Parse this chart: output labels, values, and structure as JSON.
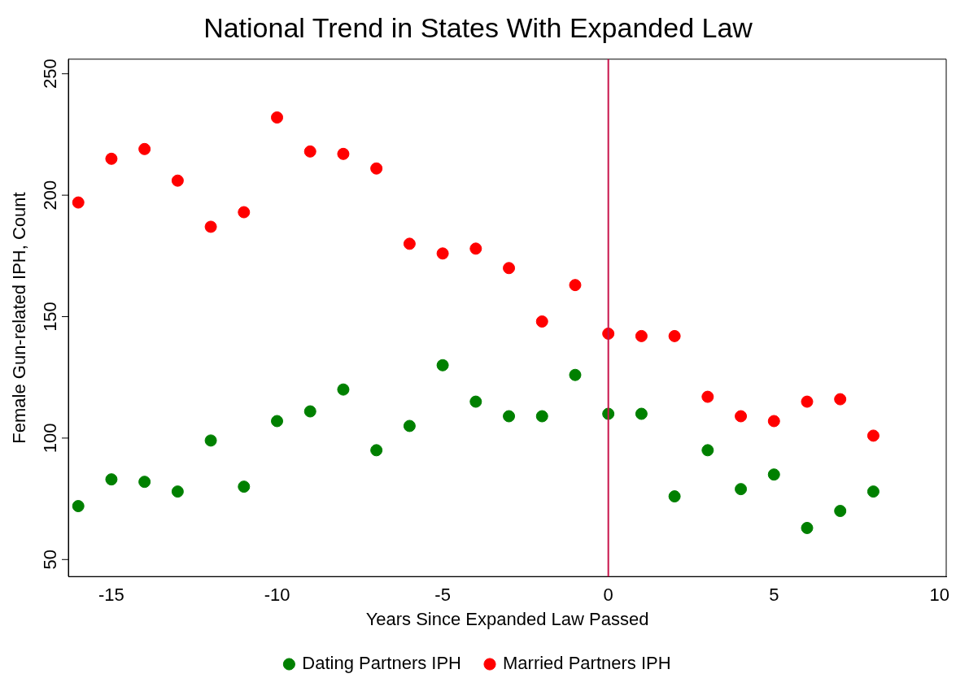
{
  "chart_data": {
    "type": "scatter",
    "title": "National Trend in States With Expanded Law",
    "xlabel": "Years Since Expanded Law Passed",
    "ylabel": "Female Gun-related IPH, Count",
    "x": [
      -16,
      -15,
      -14,
      -13,
      -12,
      -11,
      -10,
      -9,
      -8,
      -7,
      -6,
      -5,
      -4,
      -3,
      -2,
      -1,
      0,
      1,
      2,
      3,
      4,
      5,
      6,
      7,
      8
    ],
    "series": [
      {
        "name": "Dating Partners IPH",
        "color": "#008000",
        "values": [
          72,
          83,
          82,
          78,
          99,
          80,
          107,
          111,
          120,
          95,
          105,
          130,
          115,
          109,
          109,
          126,
          110,
          110,
          76,
          95,
          79,
          85,
          63,
          70,
          78
        ]
      },
      {
        "name": "Married Partners IPH",
        "color": "#ff0000",
        "values": [
          197,
          215,
          219,
          206,
          187,
          193,
          232,
          218,
          217,
          211,
          180,
          176,
          178,
          170,
          148,
          163,
          143,
          142,
          142,
          117,
          109,
          107,
          115,
          116,
          101
        ]
      }
    ],
    "xlim": [
      -16.3,
      10.2
    ],
    "xticks": [
      -15,
      -10,
      -5,
      0,
      5,
      10
    ],
    "ylim": [
      43,
      256
    ],
    "yticks": [
      50,
      100,
      150,
      200,
      250
    ],
    "ref_lines": [
      {
        "axis": "x",
        "value": 0,
        "color": "#c8144b"
      }
    ],
    "grid": false,
    "legend": "bottom",
    "marker": "circle"
  }
}
